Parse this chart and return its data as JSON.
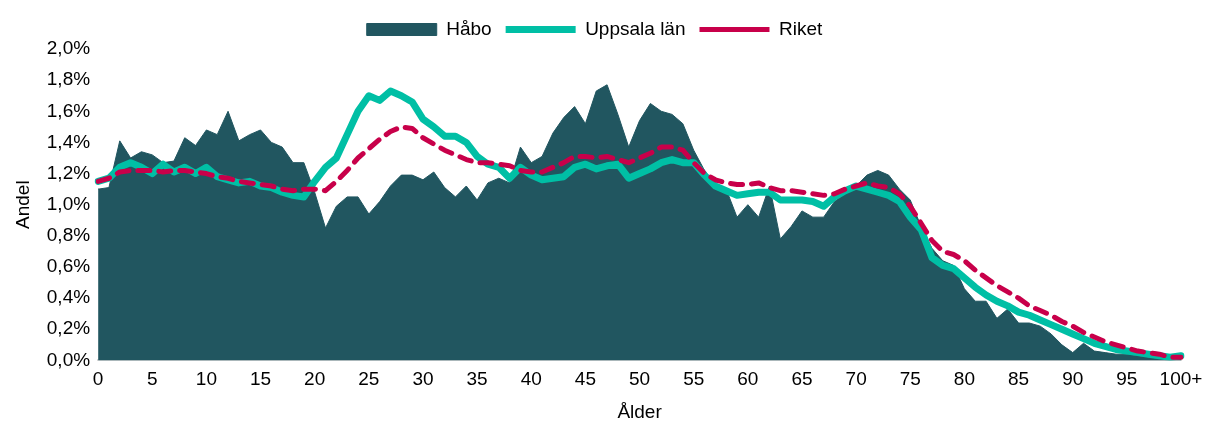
{
  "chart_data": {
    "type": "area",
    "xlabel": "Ålder",
    "ylabel": "Andel",
    "legend": "top",
    "grid": false,
    "categories": [
      "0",
      null,
      null,
      null,
      null,
      "5",
      null,
      null,
      null,
      null,
      "10",
      null,
      null,
      null,
      null,
      "15",
      null,
      null,
      null,
      null,
      "20",
      null,
      null,
      null,
      null,
      "25",
      null,
      null,
      null,
      null,
      "30",
      null,
      null,
      null,
      null,
      "35",
      null,
      null,
      null,
      null,
      "40",
      null,
      null,
      null,
      null,
      "45",
      null,
      null,
      null,
      null,
      "50",
      null,
      null,
      null,
      null,
      "55",
      null,
      null,
      null,
      null,
      "60",
      null,
      null,
      null,
      null,
      "65",
      null,
      null,
      null,
      null,
      "70",
      null,
      null,
      null,
      null,
      "75",
      null,
      null,
      null,
      null,
      "80",
      null,
      null,
      null,
      null,
      "85",
      null,
      null,
      null,
      null,
      "90",
      null,
      null,
      null,
      null,
      "95",
      null,
      null,
      null,
      null,
      "100+"
    ],
    "ylim": [
      0,
      2.0
    ],
    "yticks": [
      {
        "value": 0,
        "label": "0,0%"
      },
      {
        "value": 0.2,
        "label": "0,2%"
      },
      {
        "value": 0.4,
        "label": "0,4%"
      },
      {
        "value": 0.6,
        "label": "0,6%"
      },
      {
        "value": 0.8,
        "label": "0,8%"
      },
      {
        "value": 1.0,
        "label": "1,0%"
      },
      {
        "value": 1.2,
        "label": "1,2%"
      },
      {
        "value": 1.4,
        "label": "1,4%"
      },
      {
        "value": 1.6,
        "label": "1,6%"
      },
      {
        "value": 1.8,
        "label": "1,8%"
      },
      {
        "value": 2.0,
        "label": "2,0%"
      }
    ],
    "series": [
      {
        "name": "Håbo",
        "type": "area",
        "color": "#215660",
        "values": [
          1.1,
          1.11,
          1.41,
          1.3,
          1.34,
          1.32,
          1.27,
          1.28,
          1.43,
          1.38,
          1.48,
          1.45,
          1.6,
          1.41,
          1.45,
          1.48,
          1.4,
          1.37,
          1.27,
          1.27,
          1.08,
          0.85,
          0.99,
          1.05,
          1.05,
          0.94,
          1.02,
          1.12,
          1.19,
          1.19,
          1.16,
          1.21,
          1.11,
          1.05,
          1.12,
          1.03,
          1.14,
          1.17,
          1.14,
          1.37,
          1.27,
          1.31,
          1.46,
          1.56,
          1.63,
          1.52,
          1.73,
          1.77,
          1.58,
          1.37,
          1.54,
          1.65,
          1.6,
          1.58,
          1.52,
          1.35,
          1.22,
          1.12,
          1.1,
          0.92,
          1.0,
          0.92,
          1.12,
          0.78,
          0.86,
          0.96,
          0.92,
          0.92,
          1.02,
          1.07,
          1.12,
          1.19,
          1.22,
          1.19,
          1.1,
          1.03,
          0.86,
          0.72,
          0.64,
          0.61,
          0.46,
          0.38,
          0.38,
          0.27,
          0.33,
          0.24,
          0.24,
          0.22,
          0.17,
          0.1,
          0.05,
          0.11,
          0.06,
          0.05,
          0.04,
          0.04,
          0.03,
          0.02,
          0.01,
          0.01,
          0.01
        ]
      },
      {
        "name": "Uppsala län",
        "type": "line",
        "line_style": "solid",
        "color": "#00bfa5",
        "values": [
          1.15,
          1.17,
          1.24,
          1.27,
          1.24,
          1.2,
          1.26,
          1.21,
          1.24,
          1.2,
          1.24,
          1.18,
          1.16,
          1.14,
          1.15,
          1.12,
          1.11,
          1.08,
          1.06,
          1.05,
          1.15,
          1.24,
          1.3,
          1.45,
          1.6,
          1.7,
          1.67,
          1.73,
          1.7,
          1.66,
          1.55,
          1.5,
          1.44,
          1.44,
          1.4,
          1.31,
          1.26,
          1.24,
          1.17,
          1.24,
          1.19,
          1.16,
          1.17,
          1.18,
          1.24,
          1.26,
          1.23,
          1.25,
          1.26,
          1.17,
          1.2,
          1.23,
          1.27,
          1.29,
          1.27,
          1.27,
          1.19,
          1.12,
          1.09,
          1.06,
          1.07,
          1.08,
          1.08,
          1.03,
          1.03,
          1.03,
          1.02,
          0.99,
          1.05,
          1.09,
          1.12,
          1.1,
          1.08,
          1.06,
          1.02,
          0.92,
          0.84,
          0.66,
          0.61,
          0.59,
          0.53,
          0.47,
          0.42,
          0.38,
          0.35,
          0.31,
          0.29,
          0.26,
          0.23,
          0.2,
          0.17,
          0.14,
          0.11,
          0.09,
          0.07,
          0.06,
          0.05,
          0.04,
          0.03,
          0.02,
          0.03
        ]
      },
      {
        "name": "Riket",
        "type": "line",
        "line_style": "dashed",
        "color": "#c8004a",
        "values": [
          1.15,
          1.17,
          1.21,
          1.22,
          1.22,
          1.22,
          1.21,
          1.22,
          1.22,
          1.21,
          1.2,
          1.18,
          1.17,
          1.15,
          1.14,
          1.13,
          1.12,
          1.1,
          1.09,
          1.1,
          1.1,
          1.09,
          1.15,
          1.22,
          1.3,
          1.36,
          1.42,
          1.47,
          1.5,
          1.49,
          1.43,
          1.39,
          1.35,
          1.32,
          1.29,
          1.27,
          1.27,
          1.26,
          1.25,
          1.22,
          1.21,
          1.21,
          1.24,
          1.27,
          1.31,
          1.31,
          1.3,
          1.31,
          1.29,
          1.27,
          1.3,
          1.33,
          1.37,
          1.37,
          1.35,
          1.27,
          1.2,
          1.16,
          1.14,
          1.13,
          1.13,
          1.14,
          1.11,
          1.09,
          1.09,
          1.08,
          1.07,
          1.06,
          1.07,
          1.1,
          1.12,
          1.14,
          1.12,
          1.11,
          1.07,
          0.99,
          0.88,
          0.77,
          0.7,
          0.68,
          0.64,
          0.58,
          0.53,
          0.48,
          0.44,
          0.4,
          0.35,
          0.32,
          0.29,
          0.25,
          0.22,
          0.18,
          0.15,
          0.12,
          0.1,
          0.08,
          0.06,
          0.05,
          0.04,
          0.02,
          0.02
        ]
      }
    ]
  }
}
